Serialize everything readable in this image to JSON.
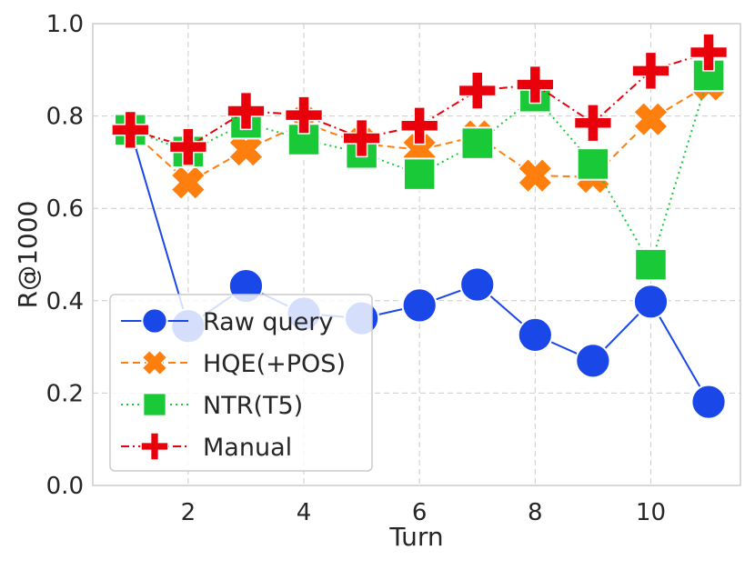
{
  "chart_data": {
    "type": "line",
    "title": "",
    "xlabel": "Turn",
    "ylabel": "R@1000",
    "x": [
      1,
      2,
      3,
      4,
      5,
      6,
      7,
      8,
      9,
      10,
      11
    ],
    "xticks": [
      "2",
      "4",
      "6",
      "8",
      "10"
    ],
    "yticks": [
      "0.0",
      "0.2",
      "0.4",
      "0.6",
      "0.8",
      "1.0"
    ],
    "xlim": [
      0.35,
      11.55
    ],
    "ylim": [
      0.0,
      1.0
    ],
    "grid": true,
    "legend_position": "lower-left",
    "series": [
      {
        "name": "Raw query",
        "color": "#1a47e8",
        "linestyle": "solid",
        "marker": "circle",
        "values": [
          0.77,
          0.345,
          0.432,
          0.372,
          0.362,
          0.39,
          0.435,
          0.326,
          0.27,
          0.398,
          0.181
        ]
      },
      {
        "name": "HQE(+POS)",
        "color": "#ff7f0e",
        "linestyle": "dashed",
        "marker": "x",
        "values": [
          0.77,
          0.656,
          0.727,
          0.785,
          0.74,
          0.727,
          0.756,
          0.671,
          0.668,
          0.793,
          0.868
        ]
      },
      {
        "name": "NTR(T5)",
        "color": "#1ac938",
        "linestyle": "dotted",
        "marker": "square",
        "values": [
          0.77,
          0.723,
          0.785,
          0.749,
          0.72,
          0.674,
          0.741,
          0.842,
          0.696,
          0.478,
          0.888
        ]
      },
      {
        "name": "Manual",
        "color": "#e8000b",
        "linestyle": "dashdot",
        "marker": "plus",
        "values": [
          0.77,
          0.733,
          0.811,
          0.802,
          0.752,
          0.779,
          0.855,
          0.868,
          0.785,
          0.898,
          0.938
        ]
      }
    ]
  }
}
